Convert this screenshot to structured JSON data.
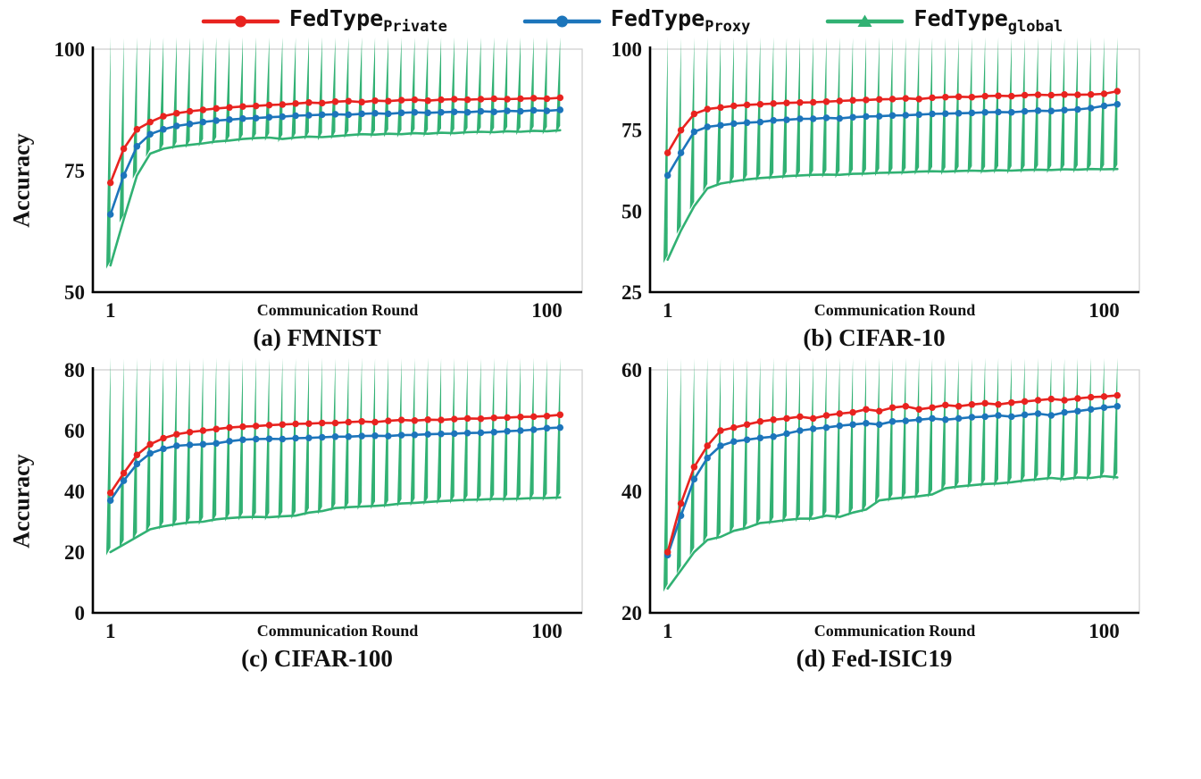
{
  "ylabel": "Accuracy",
  "legend": [
    {
      "label_main": "FedType",
      "label_sub": "Private",
      "color": "#e8231f",
      "marker": "circle"
    },
    {
      "label_main": "FedType",
      "label_sub": "Proxy",
      "color": "#1c75bb",
      "marker": "circle"
    },
    {
      "label_main": "FedType",
      "label_sub": "global",
      "color": "#31b173",
      "marker": "triangle"
    }
  ],
  "chart_data": [
    {
      "type": "line",
      "title": "(a) FMNIST",
      "xlabel": "Communication Round",
      "ylabel": "Accuracy",
      "xlim": [
        -3,
        108
      ],
      "ylim": [
        50,
        100
      ],
      "yticks": [
        50,
        75,
        100
      ],
      "xticks": [
        1,
        100
      ],
      "x": [
        1,
        4,
        7,
        10,
        13,
        16,
        19,
        22,
        25,
        28,
        31,
        34,
        37,
        40,
        43,
        46,
        49,
        52,
        55,
        58,
        61,
        64,
        67,
        70,
        73,
        76,
        79,
        82,
        85,
        88,
        91,
        94,
        97,
        100,
        103
      ],
      "series": [
        {
          "name": "FedType_Private",
          "color": "#e8231f",
          "marker": "circle",
          "values": [
            72.5,
            79.5,
            83.5,
            85,
            86.2,
            86.8,
            87.2,
            87.5,
            87.8,
            88,
            88.2,
            88.3,
            88.5,
            88.6,
            88.8,
            89,
            88.9,
            89.2,
            89.3,
            89.1,
            89.4,
            89.3,
            89.5,
            89.6,
            89.4,
            89.6,
            89.7,
            89.6,
            89.7,
            89.8,
            89.7,
            89.8,
            89.9,
            89.8,
            90
          ]
        },
        {
          "name": "FedType_Proxy",
          "color": "#1c75bb",
          "marker": "circle",
          "values": [
            66,
            74,
            80,
            82.5,
            83.5,
            84.2,
            84.6,
            85,
            85.3,
            85.5,
            85.7,
            85.8,
            86,
            86.1,
            86.3,
            86.4,
            86.5,
            86.6,
            86.5,
            86.7,
            86.8,
            86.7,
            86.9,
            87,
            86.9,
            87,
            87.1,
            87,
            87.2,
            87.1,
            87.3,
            87.2,
            87.4,
            87.3,
            87.5
          ]
        },
        {
          "name": "FedType_global",
          "color": "#31b173",
          "marker": "triangle",
          "values": [
            55.5,
            65,
            74,
            78.5,
            79.5,
            80,
            80.3,
            80.6,
            81,
            81.2,
            81.5,
            81.7,
            81.8,
            81.5,
            81.8,
            82,
            81.9,
            82.1,
            82.3,
            82.5,
            82.4,
            82.6,
            82.5,
            82.7,
            82.6,
            82.8,
            82.7,
            82.9,
            83,
            82.9,
            83.1,
            83,
            83.2,
            83.1,
            83.3
          ]
        }
      ]
    },
    {
      "type": "line",
      "title": "(b) CIFAR-10",
      "xlabel": "Communication Round",
      "ylabel": "Accuracy",
      "xlim": [
        -3,
        108
      ],
      "ylim": [
        25,
        100
      ],
      "yticks": [
        25,
        50,
        75,
        100
      ],
      "xticks": [
        1,
        100
      ],
      "x": [
        1,
        4,
        7,
        10,
        13,
        16,
        19,
        22,
        25,
        28,
        31,
        34,
        37,
        40,
        43,
        46,
        49,
        52,
        55,
        58,
        61,
        64,
        67,
        70,
        73,
        76,
        79,
        82,
        85,
        88,
        91,
        94,
        97,
        100,
        103
      ],
      "series": [
        {
          "name": "FedType_Private",
          "color": "#e8231f",
          "marker": "circle",
          "values": [
            68,
            75,
            80,
            81.5,
            82,
            82.5,
            82.8,
            83,
            83.2,
            83.4,
            83.5,
            83.6,
            83.8,
            84,
            84.2,
            84.3,
            84.5,
            84.6,
            84.8,
            84.6,
            85,
            85.2,
            85.3,
            85.2,
            85.5,
            85.6,
            85.5,
            85.8,
            85.9,
            85.8,
            86,
            85.9,
            86,
            86.2,
            87
          ]
        },
        {
          "name": "FedType_Proxy",
          "color": "#1c75bb",
          "marker": "circle",
          "values": [
            61,
            68,
            74.5,
            76,
            76.5,
            77,
            77.3,
            77.5,
            78,
            78.2,
            78.5,
            78.5,
            78.8,
            78.6,
            79,
            79.2,
            79.3,
            79.5,
            79.6,
            79.8,
            80,
            80.1,
            80.2,
            80.3,
            80.5,
            80.6,
            80.5,
            80.8,
            81,
            80.9,
            81.2,
            81.4,
            81.8,
            82.5,
            83
          ]
        },
        {
          "name": "FedType_global",
          "color": "#31b173",
          "marker": "triangle",
          "values": [
            35,
            44,
            51.5,
            57,
            58.5,
            59.2,
            59.8,
            60.2,
            60.5,
            60.8,
            61,
            61.2,
            61.3,
            61.2,
            61.5,
            61.6,
            61.8,
            61.9,
            62,
            62.2,
            62.3,
            62.2,
            62.4,
            62.5,
            62.4,
            62.6,
            62.5,
            62.7,
            62.8,
            62.7,
            62.9,
            62.8,
            63,
            62.9,
            63
          ]
        }
      ]
    },
    {
      "type": "line",
      "title": "(c) CIFAR-100",
      "xlabel": "Communication Round",
      "ylabel": "Accuracy",
      "xlim": [
        -3,
        108
      ],
      "ylim": [
        0,
        80
      ],
      "yticks": [
        0,
        20,
        40,
        60,
        80
      ],
      "xticks": [
        1,
        100
      ],
      "x": [
        1,
        4,
        7,
        10,
        13,
        16,
        19,
        22,
        25,
        28,
        31,
        34,
        37,
        40,
        43,
        46,
        49,
        52,
        55,
        58,
        61,
        64,
        67,
        70,
        73,
        76,
        79,
        82,
        85,
        88,
        91,
        94,
        97,
        100,
        103
      ],
      "series": [
        {
          "name": "FedType_Private",
          "color": "#e8231f",
          "marker": "circle",
          "values": [
            39.5,
            46,
            52,
            55.5,
            57.5,
            58.8,
            59.5,
            60,
            60.5,
            61,
            61.3,
            61.5,
            61.8,
            62,
            62.2,
            62.3,
            62.5,
            62.5,
            62.8,
            63,
            62.8,
            63.2,
            63.5,
            63.3,
            63.6,
            63.5,
            63.8,
            64,
            63.9,
            64.2,
            64.3,
            64.5,
            64.6,
            64.8,
            65.2
          ]
        },
        {
          "name": "FedType_Proxy",
          "color": "#1c75bb",
          "marker": "circle",
          "values": [
            37,
            43.5,
            49,
            52.5,
            54,
            55,
            55.3,
            55.5,
            55.8,
            56.5,
            57,
            57.2,
            57.3,
            57.2,
            57.5,
            57.6,
            57.8,
            58,
            58,
            58.2,
            58.3,
            58.2,
            58.5,
            58.6,
            58.8,
            58.9,
            59,
            59.2,
            59.3,
            59.5,
            59.8,
            60,
            60.3,
            60.8,
            61
          ]
        },
        {
          "name": "FedType_global",
          "color": "#31b173",
          "marker": "triangle",
          "values": [
            20,
            22.5,
            25,
            27.5,
            28.5,
            29.2,
            29.8,
            30,
            30.8,
            31.2,
            31.5,
            31.6,
            31.5,
            31.8,
            32,
            33,
            33.5,
            34.5,
            34.8,
            35,
            35.2,
            35.5,
            36,
            36.2,
            36.5,
            36.8,
            37,
            37.2,
            37.3,
            37.5,
            37.5,
            37.6,
            37.8,
            37.8,
            38
          ]
        }
      ]
    },
    {
      "type": "line",
      "title": "(d) Fed-ISIC19",
      "xlabel": "Communication Round",
      "ylabel": "Accuracy",
      "xlim": [
        -3,
        108
      ],
      "ylim": [
        20,
        60
      ],
      "yticks": [
        20,
        40,
        60
      ],
      "xticks": [
        1,
        100
      ],
      "x": [
        1,
        4,
        7,
        10,
        13,
        16,
        19,
        22,
        25,
        28,
        31,
        34,
        37,
        40,
        43,
        46,
        49,
        52,
        55,
        58,
        61,
        64,
        67,
        70,
        73,
        76,
        79,
        82,
        85,
        88,
        91,
        94,
        97,
        100,
        103
      ],
      "series": [
        {
          "name": "FedType_Private",
          "color": "#e8231f",
          "marker": "circle",
          "values": [
            30,
            38,
            44,
            47.5,
            50,
            50.5,
            51,
            51.5,
            51.8,
            52,
            52.3,
            52,
            52.5,
            52.8,
            53,
            53.5,
            53.2,
            53.8,
            54,
            53.5,
            53.8,
            54.2,
            54,
            54.3,
            54.5,
            54.3,
            54.6,
            54.8,
            55,
            55.2,
            55,
            55.3,
            55.5,
            55.6,
            55.8
          ]
        },
        {
          "name": "FedType_Proxy",
          "color": "#1c75bb",
          "marker": "circle",
          "values": [
            29.5,
            36,
            42,
            45.5,
            47.5,
            48.2,
            48.5,
            48.8,
            49,
            49.5,
            50,
            50.3,
            50.5,
            50.8,
            51,
            51.2,
            51,
            51.5,
            51.6,
            51.8,
            52,
            51.8,
            52,
            52.2,
            52.3,
            52.5,
            52.3,
            52.6,
            52.8,
            52.5,
            53,
            53.2,
            53.5,
            53.8,
            54
          ]
        },
        {
          "name": "FedType_global",
          "color": "#31b173",
          "marker": "triangle",
          "values": [
            24,
            27,
            30,
            32,
            32.5,
            33.5,
            34,
            34.8,
            35,
            35.3,
            35.5,
            35.5,
            36,
            35.8,
            36.5,
            37,
            38.5,
            38.8,
            39,
            39.2,
            39.5,
            40.5,
            40.8,
            41,
            41.2,
            41.3,
            41.5,
            41.8,
            42,
            42.2,
            42,
            42.3,
            42.2,
            42.5,
            42.3
          ]
        }
      ]
    }
  ]
}
